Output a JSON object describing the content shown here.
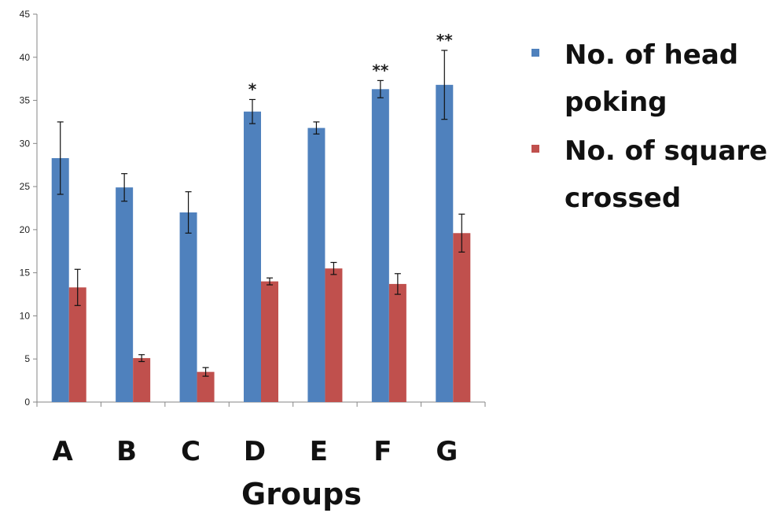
{
  "chart_data": {
    "type": "bar",
    "categories": [
      "A",
      "B",
      "C",
      "D",
      "E",
      "F",
      "G"
    ],
    "series": [
      {
        "name": "No. of head poking",
        "color": "#4F81BD",
        "values": [
          28.3,
          24.9,
          22.0,
          33.7,
          31.8,
          36.3,
          36.8
        ],
        "errors": [
          4.2,
          1.6,
          2.4,
          1.4,
          0.7,
          1.0,
          4.0
        ]
      },
      {
        "name": "No. of square crossed",
        "color": "#C0504D",
        "values": [
          13.3,
          5.1,
          3.5,
          14.0,
          15.5,
          13.7,
          19.6
        ],
        "errors": [
          2.1,
          0.4,
          0.5,
          0.4,
          0.7,
          1.2,
          2.2
        ]
      }
    ],
    "annotations": [
      "",
      "",
      "",
      "*",
      "",
      "**",
      "**"
    ],
    "xlabel": "Groups",
    "ylabel": "",
    "ylim": [
      0,
      45
    ],
    "yticks": [
      0,
      5,
      10,
      15,
      20,
      25,
      30,
      35,
      40,
      45
    ],
    "grid": false,
    "legend_position": "right"
  }
}
